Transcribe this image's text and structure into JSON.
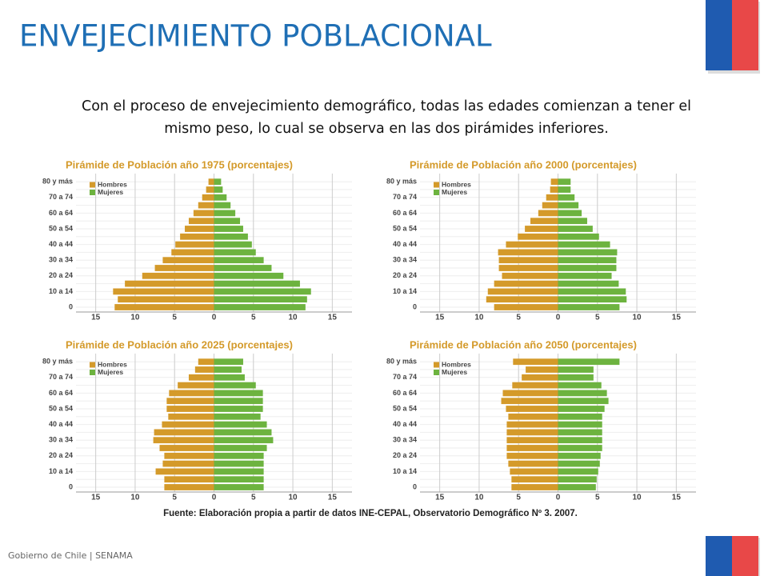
{
  "title": "ENVEJECIMIENTO POBLACIONAL",
  "text": [
    "Con el proceso de envejecimiento demográfico, todas las edades comienzan a tener el",
    "mismo peso, lo cual se observa en las dos pirámides inferiores."
  ],
  "source": "Fuente: Elaboración propia a partir de datos INE-CEPAL, Observatorio Demográfico Nº 3. 2007.",
  "footer": "Gobierno de Chile | SENAMA",
  "chart_data": [
    {
      "type": "pyramid",
      "title": "Pirámide de Población año 1975 (porcentajes)",
      "categories": [
        "0",
        null,
        "10 a 14",
        null,
        "20 a 24",
        null,
        "30 a 34",
        null,
        "40 a 44",
        null,
        "50 a 54",
        null,
        "60 a 64",
        null,
        "70 a 74",
        null,
        "80 y más"
      ],
      "series": [
        {
          "name": "Hombres",
          "color": "#d49a2a",
          "values": [
            12.6,
            12.2,
            12.8,
            11.3,
            9.1,
            7.5,
            6.5,
            5.4,
            4.9,
            4.3,
            3.7,
            3.2,
            2.6,
            2.0,
            1.5,
            1.0,
            0.7
          ]
        },
        {
          "name": "Mujeres",
          "color": "#6db33f",
          "values": [
            11.6,
            11.8,
            12.3,
            10.9,
            8.8,
            7.3,
            6.3,
            5.3,
            4.8,
            4.3,
            3.7,
            3.3,
            2.7,
            2.1,
            1.6,
            1.1,
            0.9
          ]
        }
      ],
      "xlim": [
        -17.5,
        17.5
      ],
      "xticks": [
        {
          "value": -15,
          "label": "15"
        },
        {
          "value": -10,
          "label": "10"
        },
        {
          "value": -5,
          "label": "5"
        },
        0,
        5,
        10,
        15
      ],
      "grid": true,
      "legend": "top-left"
    },
    {
      "type": "pyramid",
      "title": "Pirámide de Población año 2000 (porcentajes)",
      "categories": [
        "0",
        null,
        "10 a 14",
        null,
        "20 a 24",
        null,
        "30 a 34",
        null,
        "40 a 44",
        null,
        "50 a 54",
        null,
        "60 a 64",
        null,
        "70 a 74",
        null,
        "80 y más"
      ],
      "series": [
        {
          "name": "Hombres",
          "color": "#d49a2a",
          "values": [
            8.1,
            9.1,
            8.9,
            8.1,
            7.1,
            7.5,
            7.5,
            7.6,
            6.6,
            5.1,
            4.2,
            3.5,
            2.5,
            2.0,
            1.5,
            1.0,
            0.9
          ]
        },
        {
          "name": "Mujeres",
          "color": "#6db33f",
          "values": [
            7.8,
            8.7,
            8.6,
            7.7,
            6.8,
            7.4,
            7.4,
            7.5,
            6.6,
            5.2,
            4.4,
            3.7,
            3.0,
            2.6,
            2.1,
            1.6,
            1.6
          ]
        }
      ],
      "xlim": [
        -17.5,
        17.5
      ],
      "xticks": [
        {
          "value": -15,
          "label": "15"
        },
        {
          "value": -10,
          "label": "10"
        },
        {
          "value": -5,
          "label": "5"
        },
        0,
        5,
        10,
        15
      ],
      "grid": true,
      "legend": "top-left"
    },
    {
      "type": "pyramid",
      "title": "Pirámide de Población año 2025 (porcentajes)",
      "categories": [
        "0",
        null,
        "10 a 14",
        null,
        "20 a 24",
        null,
        "30 a 34",
        null,
        "40 a 44",
        null,
        "50 a 54",
        null,
        "60 a 64",
        null,
        "70 a 74",
        null,
        "80 y más"
      ],
      "series": [
        {
          "name": "Hombres",
          "color": "#d49a2a",
          "values": [
            6.3,
            6.3,
            7.4,
            6.5,
            6.3,
            6.9,
            7.7,
            7.6,
            6.6,
            5.8,
            6.0,
            6.0,
            5.7,
            4.6,
            3.2,
            2.4,
            2.0
          ]
        },
        {
          "name": "Mujeres",
          "color": "#6db33f",
          "values": [
            6.3,
            6.3,
            6.3,
            6.3,
            6.3,
            6.7,
            7.5,
            7.3,
            6.7,
            5.9,
            6.2,
            6.2,
            6.2,
            5.3,
            3.9,
            3.5,
            3.7
          ]
        }
      ],
      "xlim": [
        -17.5,
        17.5
      ],
      "xticks": [
        {
          "value": -15,
          "label": "15"
        },
        {
          "value": -10,
          "label": "10"
        },
        {
          "value": -5,
          "label": "5"
        },
        0,
        5,
        10,
        15
      ],
      "grid": true,
      "legend": "top-left"
    },
    {
      "type": "pyramid",
      "title": "Pirámide de Población año 2050 (porcentajes)",
      "categories": [
        "0",
        null,
        "10 a 14",
        null,
        "20 a 24",
        null,
        "30 a 34",
        null,
        "40 a 44",
        null,
        "50 a 54",
        null,
        "60 a 64",
        null,
        "70 a 74",
        null,
        "80 y más"
      ],
      "series": [
        {
          "name": "Hombres",
          "color": "#d49a2a",
          "values": [
            5.9,
            5.9,
            6.1,
            6.3,
            6.5,
            6.5,
            6.5,
            6.5,
            6.5,
            6.3,
            6.6,
            7.2,
            7.0,
            5.8,
            4.6,
            4.1,
            5.7
          ]
        },
        {
          "name": "Mujeres",
          "color": "#6db33f",
          "values": [
            4.8,
            4.9,
            5.1,
            5.3,
            5.4,
            5.6,
            5.6,
            5.6,
            5.6,
            5.6,
            5.9,
            6.4,
            6.2,
            5.5,
            4.5,
            4.5,
            7.8
          ]
        }
      ],
      "xlim": [
        -17.5,
        17.5
      ],
      "xticks": [
        {
          "value": -15,
          "label": "15"
        },
        {
          "value": -10,
          "label": "10"
        },
        {
          "value": -5,
          "label": "5"
        },
        0,
        5,
        10,
        15
      ],
      "grid": true,
      "legend": "top-left"
    }
  ]
}
